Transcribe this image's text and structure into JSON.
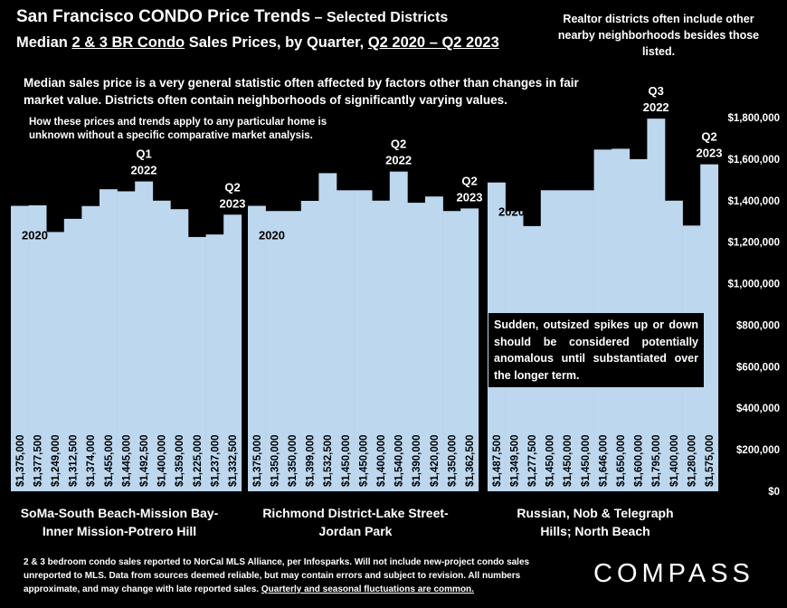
{
  "header": {
    "title_main": "San Francisco CONDO Price Trends",
    "title_suffix": " – Selected Districts",
    "subtitle_prefix": "Median ",
    "subtitle_underlined_1": "2 & 3 BR Condo",
    "subtitle_mid": " Sales Prices, by Quarter, ",
    "subtitle_underlined_2": "Q2 2020 – Q2 2023"
  },
  "notes": {
    "median_note": "Median sales price is a very general statistic often affected by factors other than changes in fair market value. Districts often contain neighborhoods of significantly varying values.",
    "cma_note": "How these prices and trends apply to any particular home is unknown without a specific comparative market analysis.",
    "realtor_note": "Realtor districts often include other nearby neighborhoods besides those listed.",
    "spike_note": "Sudden, outsized spikes up or down should be considered potentially anomalous until substantiated over the longer term."
  },
  "footer": {
    "text": "2 & 3 bedroom condo sales reported to NorCal MLS Alliance, per Infosparks. Will not include new-project condo sales unreported to MLS. Data from sources deemed reliable, but may contain errors and subject to revision. All numbers approximate, and may change with late reported sales. ",
    "underlined": "Quarterly and seasonal fluctuations are common.",
    "logo": "COMPASS"
  },
  "colors": {
    "bar": "#bdd7ee",
    "background": "#000000",
    "text": "#ffffff"
  },
  "chart_data": {
    "type": "bar",
    "y_axis_side": "right",
    "ylim": [
      0,
      1800000
    ],
    "yticks": [
      "$0",
      "$200,000",
      "$400,000",
      "$600,000",
      "$800,000",
      "$1,000,000",
      "$1,200,000",
      "$1,400,000",
      "$1,600,000",
      "$1,800,000"
    ],
    "grid": false,
    "groups": [
      {
        "name": "SoMa-South Beach-Mission Bay-Inner Mission-Potrero Hill",
        "name_lines": [
          "SoMa-South Beach-Mission Bay-",
          "Inner Mission-Potrero Hill"
        ],
        "values": [
          1375000,
          1377500,
          1249000,
          1312500,
          1374000,
          1455000,
          1445000,
          1492500,
          1400000,
          1359000,
          1225000,
          1237000,
          1332500
        ],
        "value_labels": [
          "$1,375,000",
          "$1,377,500",
          "$1,249,000",
          "$1,312,500",
          "$1,374,000",
          "$1,455,000",
          "$1,445,000",
          "$1,492,500",
          "$1,400,000",
          "$1,359,000",
          "$1,225,000",
          "$1,237,000",
          "$1,332,500"
        ],
        "annotations": [
          {
            "bar": 0,
            "lines": [
              "2020"
            ],
            "placement": "inside"
          },
          {
            "bar": 7,
            "lines": [
              "Q1",
              "2022"
            ],
            "placement": "above"
          },
          {
            "bar": 12,
            "lines": [
              "Q2",
              "2023"
            ],
            "placement": "above"
          }
        ]
      },
      {
        "name": "Richmond District-Lake Street-Jordan Park",
        "name_lines": [
          "Richmond District-Lake Street-",
          "Jordan Park"
        ],
        "values": [
          1375000,
          1350000,
          1350000,
          1399000,
          1532500,
          1450000,
          1450000,
          1400000,
          1540000,
          1390000,
          1420000,
          1350000,
          1362500
        ],
        "value_labels": [
          "$1,375,000",
          "$1,350,000",
          "$1,350,000",
          "$1,399,000",
          "$1,532,500",
          "$1,450,000",
          "$1,450,000",
          "$1,400,000",
          "$1,540,000",
          "$1,390,000",
          "$1,420,000",
          "$1,350,000",
          "$1,362,500"
        ],
        "annotations": [
          {
            "bar": 0,
            "lines": [
              "2020"
            ],
            "placement": "inside"
          },
          {
            "bar": 8,
            "lines": [
              "Q2",
              "2022"
            ],
            "placement": "above"
          },
          {
            "bar": 12,
            "lines": [
              "Q2",
              "2023"
            ],
            "placement": "above"
          }
        ]
      },
      {
        "name": "Russian, Nob & Telegraph Hills; North Beach",
        "name_lines": [
          "Russian, Nob & Telegraph",
          "Hills; North Beach"
        ],
        "values": [
          1487500,
          1349500,
          1277500,
          1450000,
          1450000,
          1450000,
          1646000,
          1650000,
          1600000,
          1795000,
          1400000,
          1280000,
          1575000
        ],
        "value_labels": [
          "$1,487,500",
          "$1,349,500",
          "$1,277,500",
          "$1,450,000",
          "$1,450,000",
          "$1,450,000",
          "$1,646,000",
          "$1,650,000",
          "$1,600,000",
          "$1,795,000",
          "$1,400,000",
          "$1,280,000",
          "$1,575,000"
        ],
        "annotations": [
          {
            "bar": 0,
            "lines": [
              "2020"
            ],
            "placement": "inside"
          },
          {
            "bar": 9,
            "lines": [
              "Q3",
              "2022"
            ],
            "placement": "above"
          },
          {
            "bar": 12,
            "lines": [
              "Q2",
              "2023"
            ],
            "placement": "above"
          }
        ]
      }
    ]
  }
}
